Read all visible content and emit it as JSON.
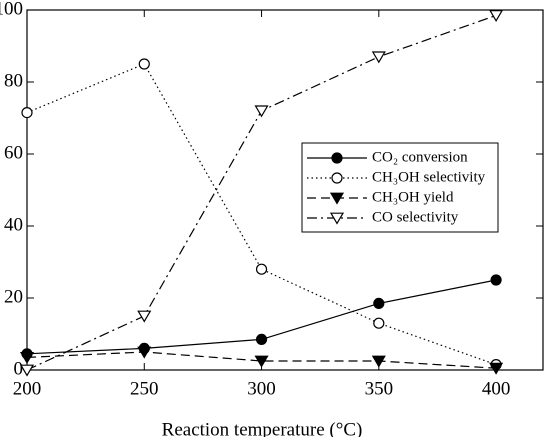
{
  "chart_data": {
    "type": "line",
    "x_label": "Reaction temperature (°C)",
    "x": [
      200,
      250,
      300,
      350,
      400
    ],
    "xlim": [
      200,
      420
    ],
    "xticks": [
      200,
      250,
      300,
      350,
      400
    ],
    "ylim": [
      0,
      100
    ],
    "yticks": [
      0,
      20,
      40,
      60,
      80,
      100
    ],
    "legend": "right",
    "series": [
      {
        "name": "CO₂ conversion",
        "color": "#000000",
        "linestyle": "solid",
        "marker": "circle-filled",
        "values": [
          4.5,
          6,
          8.5,
          18.5,
          25
        ]
      },
      {
        "name": "CH₃OH selectivity",
        "color": "#000000",
        "linestyle": "dotted",
        "marker": "circle-open",
        "values": [
          71.5,
          85,
          28,
          13,
          1.5
        ]
      },
      {
        "name": "CH₃OH yield",
        "color": "#000000",
        "linestyle": "dashed",
        "marker": "triangle-down-filled",
        "values": [
          3.5,
          5,
          2.5,
          2.5,
          0.5
        ]
      },
      {
        "name": "CO selectivity",
        "color": "#000000",
        "linestyle": "dashdot",
        "marker": "triangle-down-open",
        "values": [
          0,
          15,
          72,
          87,
          98.5
        ]
      }
    ]
  }
}
